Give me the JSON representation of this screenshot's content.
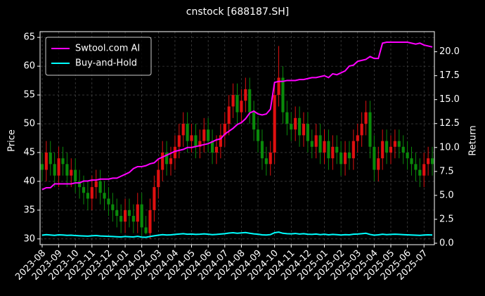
{
  "chart_data": {
    "type": "candlestick",
    "title": "cnstock [688187.SH]",
    "ylabel": "Price",
    "y2label": "Return",
    "categories": [
      "2023-08",
      null,
      null,
      null,
      "2023-09",
      null,
      null,
      null,
      "2023-10",
      null,
      null,
      null,
      "2023-11",
      null,
      null,
      null,
      "2023-12",
      null,
      null,
      null,
      "2024-01",
      null,
      null,
      null,
      "2024-02",
      null,
      null,
      null,
      "2024-03",
      null,
      null,
      null,
      "2024-04",
      null,
      null,
      null,
      "2024-05",
      null,
      null,
      null,
      "2024-06",
      null,
      null,
      null,
      "2024-07",
      null,
      null,
      null,
      "2024-08",
      null,
      null,
      null,
      "2024-09",
      null,
      null,
      null,
      "2024-10",
      null,
      null,
      null,
      "2024-11",
      null,
      null,
      null,
      "2024-12",
      null,
      null,
      null,
      "2025-01",
      null,
      null,
      null,
      "2025-02",
      null,
      null,
      null,
      "2025-03",
      null,
      null,
      null,
      "2025-04",
      null,
      null,
      null,
      "2025-05",
      null,
      null,
      null,
      "2025-06",
      null,
      null,
      null,
      "2025-07",
      null,
      null
    ],
    "open": [
      43,
      42,
      45,
      43,
      41,
      44,
      43,
      41,
      42,
      40,
      39,
      38,
      37,
      39,
      40,
      38,
      37,
      36,
      35,
      34,
      33,
      35,
      34,
      33,
      36,
      32,
      31,
      35,
      39,
      42,
      45,
      43,
      44,
      46,
      48,
      50,
      47,
      48,
      46,
      47,
      49,
      47,
      45,
      46,
      48,
      50,
      53,
      55,
      52,
      54,
      56,
      52,
      49,
      47,
      44,
      43,
      45,
      55,
      58,
      52,
      50,
      49,
      51,
      48,
      50,
      47,
      46,
      48,
      45,
      47,
      44,
      46,
      45,
      43,
      45,
      44,
      47,
      48,
      50,
      52,
      46,
      42,
      44,
      47,
      45,
      46,
      47,
      46,
      45,
      44,
      43,
      42,
      41,
      43,
      44
    ],
    "high": [
      45,
      47,
      47,
      45,
      46,
      46,
      45,
      44,
      44,
      42,
      41,
      40,
      41,
      42,
      42,
      40,
      39,
      38,
      37,
      36,
      37,
      37,
      36,
      38,
      38,
      34,
      37,
      41,
      44,
      47,
      47,
      46,
      48,
      50,
      52,
      52,
      50,
      50,
      49,
      51,
      51,
      49,
      48,
      50,
      52,
      55,
      57,
      57,
      56,
      58,
      58,
      54,
      51,
      49,
      46,
      47,
      57,
      63.5,
      60,
      54,
      52,
      53,
      53,
      52,
      52,
      49,
      50,
      50,
      49,
      49,
      48,
      48,
      47,
      47,
      47,
      49,
      50,
      52,
      54,
      54,
      48,
      46,
      49,
      49,
      48,
      49,
      49,
      48,
      47,
      46,
      45,
      44,
      45,
      46,
      46
    ],
    "low": [
      40,
      40,
      41,
      39,
      39,
      41,
      39,
      39,
      38,
      37,
      36,
      35,
      35,
      37,
      36,
      35,
      34,
      33,
      32,
      31,
      31,
      32,
      31,
      31,
      30.5,
      30.8,
      30,
      33,
      37,
      40,
      41,
      41,
      42,
      44,
      46,
      45,
      45,
      44,
      44,
      45,
      45,
      43,
      43,
      44,
      46,
      48,
      51,
      50,
      50,
      52,
      50,
      47,
      45,
      42,
      41,
      41,
      43,
      53,
      50,
      48,
      47,
      47,
      46,
      46,
      45,
      44,
      44,
      43,
      43,
      42,
      42,
      43,
      41,
      41,
      42,
      42,
      45,
      46,
      48,
      44,
      40,
      40,
      42,
      43,
      43,
      44,
      44,
      43,
      42,
      41,
      40,
      39,
      39,
      41,
      41
    ],
    "close": [
      42,
      45,
      43,
      41,
      44,
      43,
      41,
      42,
      40,
      39,
      38,
      37,
      39,
      40,
      38,
      37,
      36,
      35,
      34,
      33,
      35,
      34,
      33,
      36,
      32,
      31,
      35,
      39,
      42,
      45,
      43,
      44,
      46,
      48,
      50,
      47,
      48,
      46,
      47,
      49,
      47,
      45,
      46,
      48,
      50,
      53,
      55,
      52,
      54,
      56,
      52,
      49,
      47,
      44,
      43,
      45,
      55,
      58,
      52,
      50,
      49,
      51,
      48,
      50,
      47,
      46,
      48,
      45,
      47,
      44,
      46,
      45,
      43,
      45,
      44,
      47,
      48,
      50,
      52,
      46,
      42,
      44,
      47,
      45,
      46,
      47,
      46,
      45,
      44,
      43,
      42,
      41,
      43,
      44,
      43
    ],
    "up_color": "#e01010",
    "down_color": "#0a8a0a",
    "series": [
      {
        "name": "Swtool.com AI",
        "color": "#ff00ff",
        "axis": "y2",
        "values": [
          5.6,
          5.8,
          5.8,
          6.2,
          6.2,
          6.2,
          6.2,
          6.2,
          6.3,
          6.3,
          6.5,
          6.5,
          6.6,
          6.6,
          6.7,
          6.7,
          6.7,
          6.8,
          6.8,
          7.0,
          7.2,
          7.4,
          7.8,
          8.0,
          8.0,
          8.1,
          8.3,
          8.4,
          8.8,
          9.0,
          9.2,
          9.4,
          9.6,
          9.7,
          9.8,
          10.0,
          10.0,
          10.1,
          10.2,
          10.3,
          10.4,
          10.6,
          10.8,
          10.9,
          11.4,
          11.7,
          12.0,
          12.4,
          12.6,
          13.0,
          13.6,
          13.8,
          13.5,
          13.4,
          13.5,
          14.0,
          16.8,
          16.9,
          16.9,
          17.0,
          17.0,
          17.0,
          17.1,
          17.1,
          17.2,
          17.3,
          17.3,
          17.4,
          17.5,
          17.3,
          17.7,
          17.6,
          17.8,
          18.0,
          18.5,
          18.6,
          19.0,
          19.1,
          19.2,
          19.5,
          19.3,
          19.3,
          20.9,
          21.0,
          21.0,
          21.0,
          21.0,
          21.0,
          21.0,
          20.9,
          20.8,
          20.9,
          20.7,
          20.6,
          20.5
        ]
      },
      {
        "name": "Buy-and-Hold",
        "color": "#00ffff",
        "axis": "y2",
        "values": [
          0.84,
          0.9,
          0.86,
          0.82,
          0.88,
          0.86,
          0.82,
          0.84,
          0.8,
          0.78,
          0.76,
          0.74,
          0.78,
          0.8,
          0.76,
          0.74,
          0.72,
          0.7,
          0.68,
          0.66,
          0.7,
          0.68,
          0.66,
          0.72,
          0.64,
          0.62,
          0.7,
          0.78,
          0.84,
          0.9,
          0.86,
          0.88,
          0.92,
          0.96,
          1.0,
          0.94,
          0.96,
          0.92,
          0.94,
          0.98,
          0.94,
          0.9,
          0.92,
          0.96,
          1.0,
          1.06,
          1.1,
          1.04,
          1.08,
          1.12,
          1.04,
          0.98,
          0.94,
          0.88,
          0.86,
          0.9,
          1.1,
          1.16,
          1.04,
          1.0,
          0.98,
          1.02,
          0.96,
          1.0,
          0.94,
          0.92,
          0.96,
          0.9,
          0.94,
          0.88,
          0.92,
          0.9,
          0.86,
          0.9,
          0.88,
          0.94,
          0.96,
          1.0,
          1.04,
          0.92,
          0.84,
          0.88,
          0.94,
          0.9,
          0.92,
          0.94,
          0.92,
          0.9,
          0.88,
          0.86,
          0.84,
          0.82,
          0.86,
          0.88,
          0.86
        ]
      }
    ],
    "ylim": [
      29,
      66
    ],
    "yticks": [
      30,
      35,
      40,
      45,
      50,
      55,
      60,
      65
    ],
    "y2lim": [
      -0.15,
      22.1
    ],
    "y2ticks": [
      {
        "value": 0,
        "label": "0.0"
      },
      2.5,
      {
        "value": 5,
        "label": "5.0"
      },
      7.5,
      {
        "value": 10,
        "label": "10.0"
      },
      12.5,
      {
        "value": 15,
        "label": "15.0"
      },
      17.5,
      {
        "value": 20,
        "label": "20.0"
      }
    ],
    "grid": true,
    "legend": "upper left"
  }
}
